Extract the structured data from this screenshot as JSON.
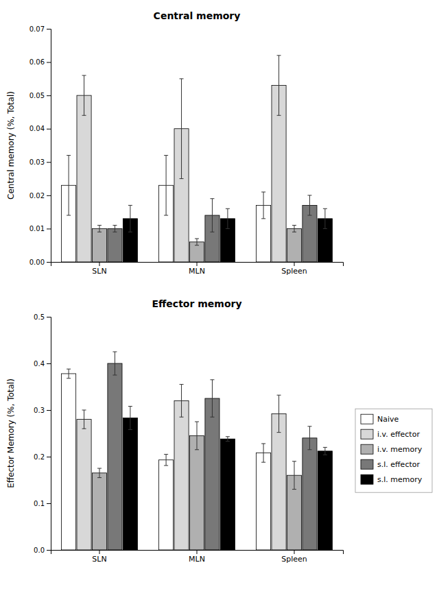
{
  "chart_data": [
    {
      "type": "bar",
      "title": "Central memory",
      "categories": [
        "SLN",
        "MLN",
        "Spleen"
      ],
      "y_label": "Central memory (%, Total)",
      "ylim": [
        0,
        0.07
      ],
      "yticks": [
        {
          "value": 0,
          "label": "0.00"
        },
        0.01,
        0.02,
        0.03,
        0.04,
        0.05,
        0.06,
        0.07
      ],
      "grid": false,
      "series": [
        {
          "name": "Naive",
          "color": "#ffffff",
          "values": [
            0.023,
            0.023,
            0.017
          ],
          "errors": [
            0.009,
            0.009,
            0.004
          ]
        },
        {
          "name": "i.v. effector",
          "color": "#d8d8d8",
          "values": [
            0.05,
            0.04,
            0.053
          ],
          "errors": [
            0.006,
            0.015,
            0.009
          ]
        },
        {
          "name": "i.v. memory",
          "color": "#b0b0b0",
          "values": [
            0.01,
            0.006,
            0.01
          ],
          "errors": [
            0.001,
            0.001,
            0.001
          ]
        },
        {
          "name": "s.l. effector",
          "color": "#787878",
          "values": [
            0.01,
            0.014,
            0.017
          ],
          "errors": [
            0.001,
            0.005,
            0.003
          ]
        },
        {
          "name": "s.l. memory",
          "color": "#000000",
          "values": [
            0.013,
            0.013,
            0.013
          ],
          "errors": [
            0.004,
            0.003,
            0.003
          ]
        }
      ]
    },
    {
      "type": "bar",
      "title": "Effector memory",
      "categories": [
        "SLN",
        "MLN",
        "Spleen"
      ],
      "y_label": "Effector Memory (%, Total)",
      "ylim": [
        0,
        0.5
      ],
      "yticks": [
        {
          "value": 0,
          "label": "0.0"
        },
        0.1,
        0.2,
        0.3,
        0.4,
        0.5
      ],
      "grid": false,
      "legend": "right",
      "series": [
        {
          "name": "Naive",
          "color": "#ffffff",
          "values": [
            0.378,
            0.193,
            0.208
          ],
          "errors": [
            0.01,
            0.012,
            0.02
          ]
        },
        {
          "name": "i.v. effector",
          "color": "#d8d8d8",
          "values": [
            0.28,
            0.32,
            0.292
          ],
          "errors": [
            0.02,
            0.035,
            0.04
          ]
        },
        {
          "name": "i.v. memory",
          "color": "#b0b0b0",
          "values": [
            0.165,
            0.245,
            0.16
          ],
          "errors": [
            0.01,
            0.03,
            0.03
          ]
        },
        {
          "name": "s.l. effector",
          "color": "#787878",
          "values": [
            0.4,
            0.325,
            0.24
          ],
          "errors": [
            0.025,
            0.04,
            0.025
          ]
        },
        {
          "name": "s.l. memory",
          "color": "#000000",
          "values": [
            0.283,
            0.238,
            0.212
          ],
          "errors": [
            0.025,
            0.005,
            0.008
          ]
        }
      ]
    }
  ]
}
